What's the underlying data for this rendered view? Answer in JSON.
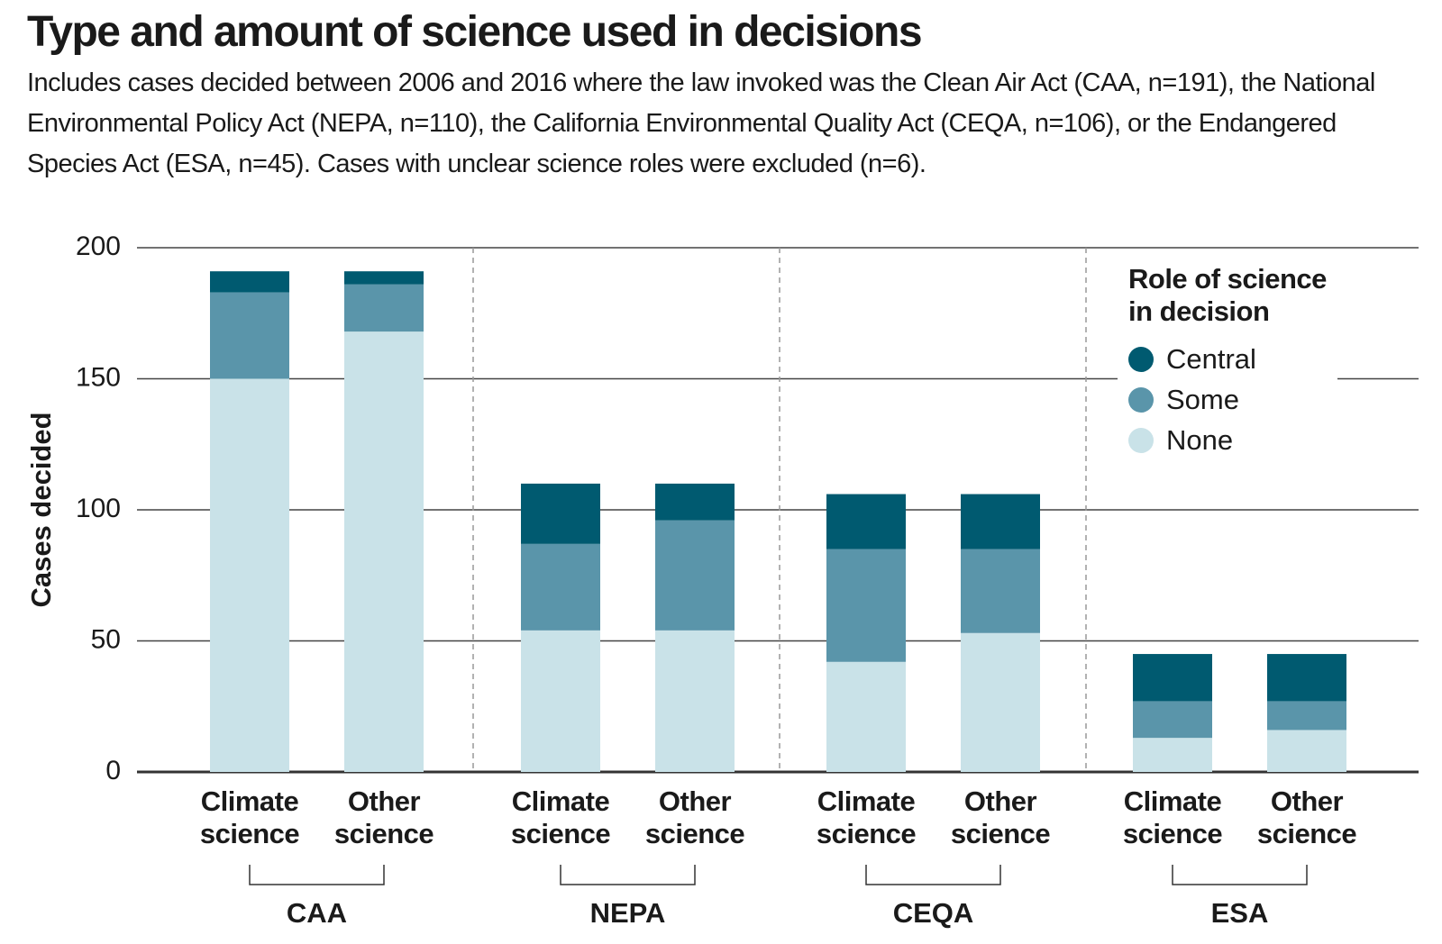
{
  "chart_data": {
    "type": "stacked_bar",
    "title": "Type and amount of science used in decisions",
    "subtitle": "Includes cases decided between 2006 and 2016 where the law invoked was the Clean Air Act (CAA, n=191), the National Environmental Policy Act (NEPA, n=110), the California Environmental Quality Act (CEQA, n=106), or the Endangered Species Act (ESA, n=45).  Cases with unclear science roles were excluded (n=6).",
    "y_label": "Cases decided",
    "categories": [
      "Climate science",
      "Other science",
      "Climate science",
      "Other science",
      "Climate science",
      "Other science",
      "Climate science",
      "Other science"
    ],
    "groups": [
      "CAA",
      "NEPA",
      "CEQA",
      "ESA"
    ],
    "legend_title": "Role of science in decision",
    "series": [
      {
        "name": "Central",
        "color": "#005a70",
        "values": [
          8,
          5,
          23,
          14,
          21,
          21,
          18,
          18
        ]
      },
      {
        "name": "Some",
        "color": "#5a95aa",
        "values": [
          33,
          18,
          33,
          42,
          43,
          32,
          14,
          11
        ]
      },
      {
        "name": "None",
        "color": "#c9e2e8",
        "values": [
          150,
          168,
          54,
          54,
          42,
          53,
          13,
          16
        ]
      }
    ],
    "ylim": [
      0,
      200
    ],
    "yticks": [
      0,
      50,
      100,
      150,
      200
    ],
    "grid": true,
    "legend_position": "upper right"
  }
}
